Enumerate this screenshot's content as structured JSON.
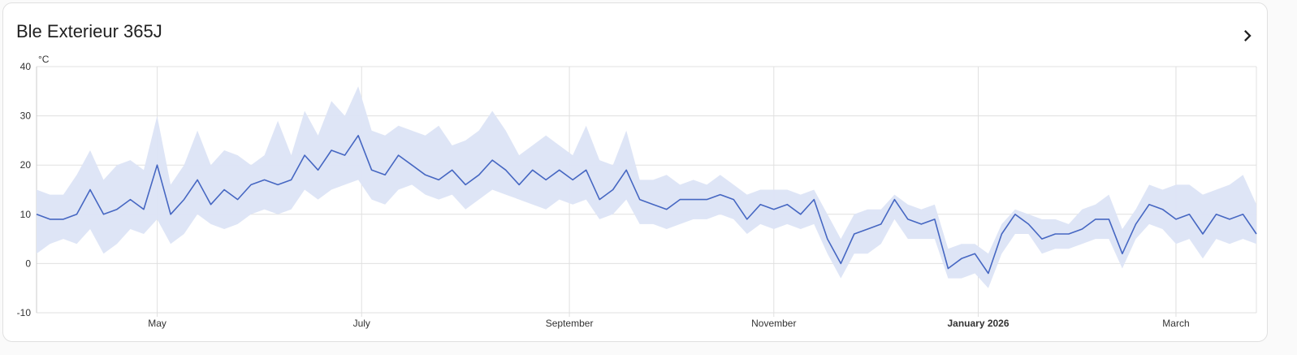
{
  "card": {
    "title": "Ble Exterieur 365J",
    "more_icon": "chevron-right-icon"
  },
  "chart_data": {
    "type": "line",
    "title": "",
    "ylabel": "°C",
    "ylim": [
      -10,
      40
    ],
    "yticks": [
      "40",
      "30",
      "20",
      "10",
      "0",
      "-10"
    ],
    "xlim": [
      "2025-03-26",
      "2026-03-25"
    ],
    "xticks": [
      {
        "date": "2025-05-01",
        "label": "May",
        "bold": false
      },
      {
        "date": "2025-07-01",
        "label": "July",
        "bold": false
      },
      {
        "date": "2025-09-01",
        "label": "September",
        "bold": false
      },
      {
        "date": "2025-11-01",
        "label": "November",
        "bold": false
      },
      {
        "date": "2026-01-01",
        "label": "January 2026",
        "bold": true
      },
      {
        "date": "2026-03-01",
        "label": "March",
        "bold": false
      }
    ],
    "grid": true,
    "colors": {
      "mean": "#4667c2",
      "band": "#dce4f6",
      "grid": "#e0e0e0"
    },
    "x": [
      "2025-03-26",
      "2025-03-30",
      "2025-04-03",
      "2025-04-07",
      "2025-04-11",
      "2025-04-15",
      "2025-04-19",
      "2025-04-23",
      "2025-04-27",
      "2025-05-01",
      "2025-05-05",
      "2025-05-09",
      "2025-05-13",
      "2025-05-17",
      "2025-05-21",
      "2025-05-25",
      "2025-05-29",
      "2025-06-02",
      "2025-06-06",
      "2025-06-10",
      "2025-06-14",
      "2025-06-18",
      "2025-06-22",
      "2025-06-26",
      "2025-06-30",
      "2025-07-04",
      "2025-07-08",
      "2025-07-12",
      "2025-07-16",
      "2025-07-20",
      "2025-07-24",
      "2025-07-28",
      "2025-08-01",
      "2025-08-05",
      "2025-08-09",
      "2025-08-13",
      "2025-08-17",
      "2025-08-21",
      "2025-08-25",
      "2025-08-29",
      "2025-09-02",
      "2025-09-06",
      "2025-09-10",
      "2025-09-14",
      "2025-09-18",
      "2025-09-22",
      "2025-09-26",
      "2025-09-30",
      "2025-10-04",
      "2025-10-08",
      "2025-10-12",
      "2025-10-16",
      "2025-10-20",
      "2025-10-24",
      "2025-10-28",
      "2025-11-01",
      "2025-11-05",
      "2025-11-09",
      "2025-11-13",
      "2025-11-17",
      "2025-11-21",
      "2025-11-25",
      "2025-11-29",
      "2025-12-03",
      "2025-12-07",
      "2025-12-11",
      "2025-12-15",
      "2025-12-19",
      "2025-12-23",
      "2025-12-27",
      "2025-12-31",
      "2026-01-04",
      "2026-01-08",
      "2026-01-12",
      "2026-01-16",
      "2026-01-20",
      "2026-01-24",
      "2026-01-28",
      "2026-02-01",
      "2026-02-05",
      "2026-02-09",
      "2026-02-13",
      "2026-02-17",
      "2026-02-21",
      "2026-02-25",
      "2026-03-01",
      "2026-03-05",
      "2026-03-09",
      "2026-03-13",
      "2026-03-17",
      "2026-03-21",
      "2026-03-25"
    ],
    "series": [
      {
        "key": "mean",
        "values": [
          10,
          9,
          9,
          10,
          15,
          10,
          11,
          13,
          11,
          20,
          10,
          13,
          17,
          12,
          15,
          13,
          16,
          17,
          16,
          17,
          22,
          19,
          23,
          22,
          26,
          19,
          18,
          22,
          20,
          18,
          17,
          19,
          16,
          18,
          21,
          19,
          16,
          19,
          17,
          19,
          17,
          19,
          13,
          15,
          19,
          13,
          12,
          11,
          13,
          13,
          13,
          14,
          13,
          9,
          12,
          11,
          12,
          10,
          13,
          5,
          0,
          6,
          7,
          8,
          13,
          9,
          8,
          9,
          -1,
          1,
          2,
          -2,
          6,
          10,
          8,
          5,
          6,
          6,
          7,
          9,
          9,
          2,
          8,
          12,
          11,
          9,
          10,
          6,
          10,
          9,
          10,
          6
        ]
      },
      {
        "key": "min",
        "values": [
          2,
          4,
          5,
          4,
          7,
          2,
          4,
          7,
          6,
          9,
          4,
          6,
          10,
          8,
          7,
          8,
          10,
          11,
          10,
          11,
          15,
          13,
          15,
          16,
          17,
          13,
          12,
          15,
          16,
          14,
          13,
          14,
          11,
          13,
          15,
          14,
          13,
          12,
          11,
          13,
          12,
          13,
          9,
          10,
          13,
          8,
          8,
          7,
          8,
          9,
          9,
          10,
          9,
          6,
          8,
          7,
          8,
          7,
          8,
          2,
          -3,
          2,
          2,
          4,
          9,
          5,
          5,
          5,
          -3,
          -3,
          -2,
          -5,
          2,
          6,
          6,
          2,
          3,
          3,
          4,
          5,
          5,
          -1,
          5,
          8,
          7,
          4,
          5,
          1,
          5,
          4,
          5,
          4
        ]
      },
      {
        "key": "max",
        "values": [
          15,
          14,
          14,
          18,
          23,
          17,
          20,
          21,
          19,
          30,
          16,
          20,
          27,
          20,
          23,
          22,
          20,
          22,
          29,
          22,
          31,
          26,
          33,
          30,
          36,
          27,
          26,
          28,
          27,
          26,
          28,
          24,
          25,
          27,
          31,
          27,
          22,
          24,
          26,
          24,
          22,
          28,
          21,
          20,
          27,
          17,
          17,
          18,
          16,
          17,
          16,
          18,
          16,
          14,
          15,
          15,
          15,
          14,
          15,
          10,
          5,
          10,
          11,
          11,
          14,
          12,
          11,
          12,
          3,
          4,
          4,
          2,
          8,
          11,
          10,
          9,
          9,
          8,
          11,
          12,
          14,
          7,
          11,
          16,
          15,
          16,
          16,
          14,
          15,
          16,
          18,
          12
        ]
      }
    ]
  }
}
